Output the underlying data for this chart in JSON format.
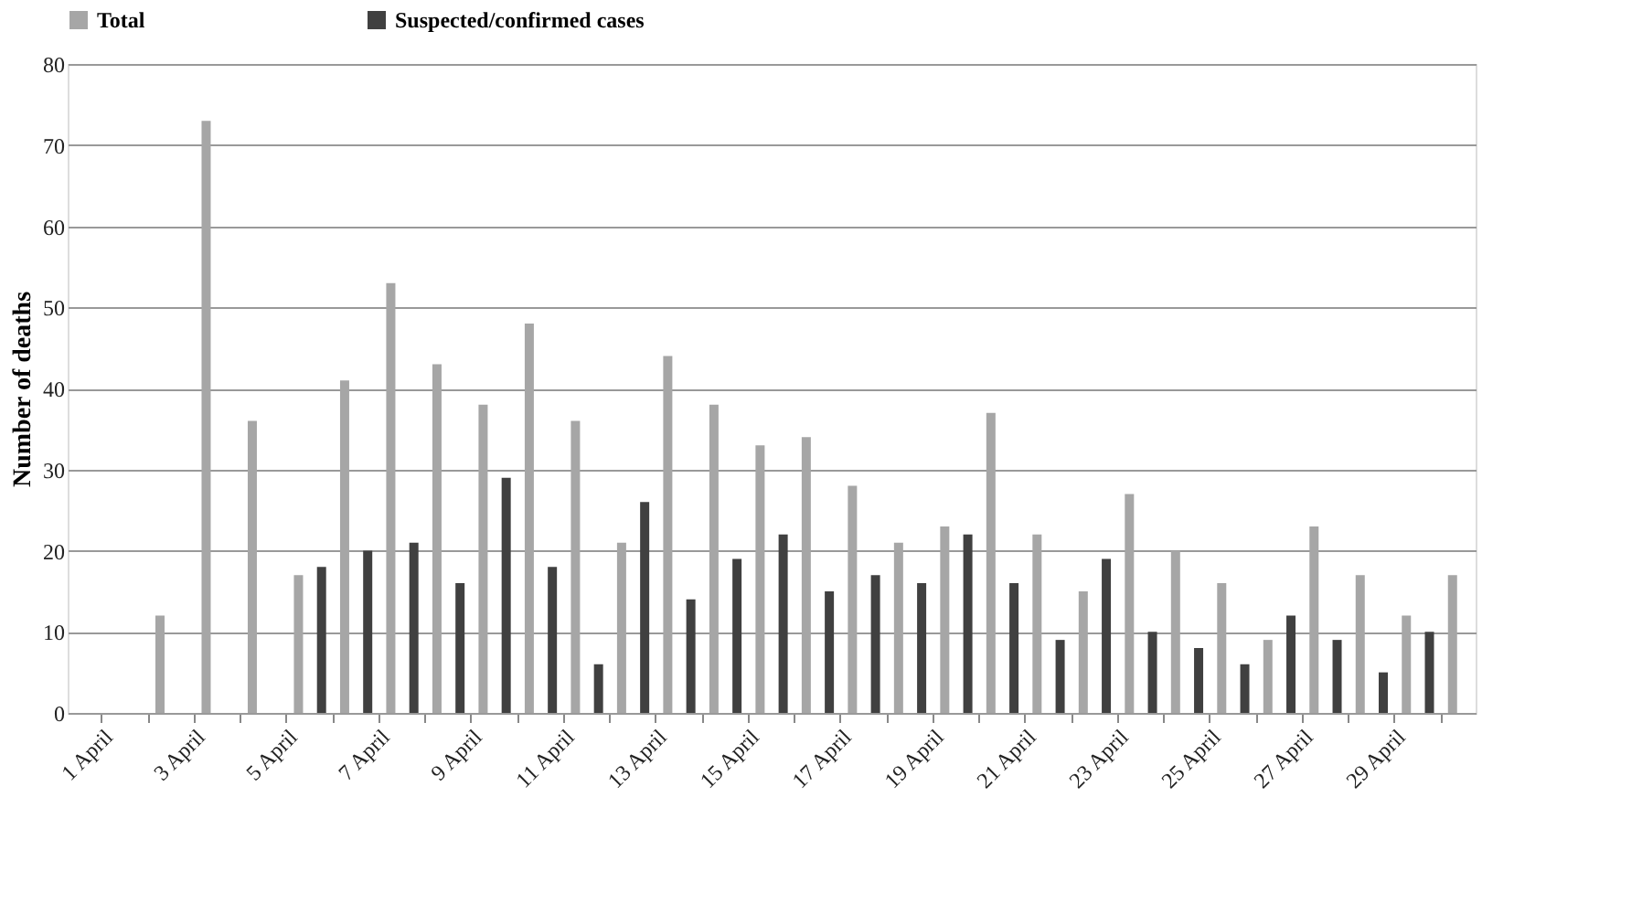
{
  "chart_data": {
    "type": "bar",
    "ylabel": "Number of deaths",
    "categories": [
      "1 April",
      null,
      "3 April",
      null,
      "5 April",
      null,
      "7 April",
      null,
      "9 April",
      null,
      "11 April",
      null,
      "13 April",
      null,
      "15 April",
      null,
      "17 April",
      null,
      "19 April",
      null,
      "21 April",
      null,
      "23 April",
      null,
      "25 April",
      null,
      "27 April",
      null,
      "29 April",
      null
    ],
    "series": [
      {
        "name": "Total",
        "color": "#a6a6a6",
        "values": [
          null,
          12,
          73,
          36,
          17,
          41,
          53,
          43,
          38,
          48,
          36,
          21,
          44,
          38,
          33,
          34,
          28,
          21,
          23,
          37,
          22,
          15,
          27,
          20,
          16,
          9,
          23,
          17,
          12,
          17
        ]
      },
      {
        "name": "Suspected/confirmed cases",
        "color": "#404040",
        "values": [
          null,
          null,
          null,
          null,
          null,
          18,
          20,
          21,
          16,
          29,
          18,
          6,
          26,
          14,
          19,
          22,
          15,
          17,
          16,
          22,
          16,
          9,
          19,
          10,
          8,
          6,
          12,
          9,
          5,
          10
        ]
      }
    ],
    "ylim": [
      0,
      80
    ],
    "yticks": [
      0,
      10,
      20,
      30,
      40,
      50,
      60,
      70,
      80
    ],
    "grid": "y",
    "legend": "top"
  }
}
